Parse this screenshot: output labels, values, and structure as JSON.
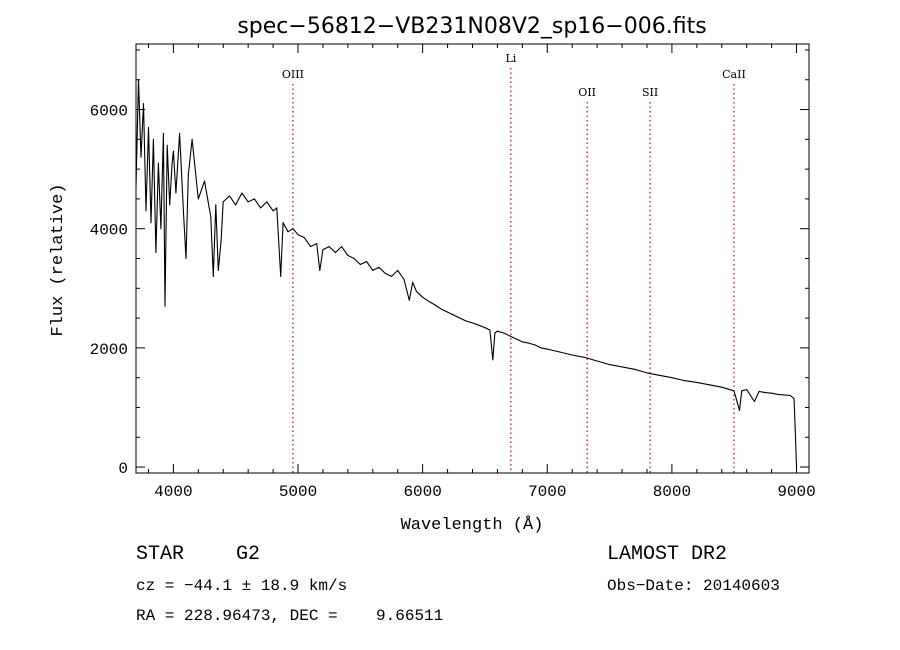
{
  "chart_data": {
    "type": "line",
    "title": "spec−56812−VB231N08V2_sp16−006.fits",
    "xlabel": "Wavelength (Å)",
    "ylabel": "Flux (relative)",
    "xlim": [
      3700,
      9100
    ],
    "ylim": [
      -100,
      7100
    ],
    "x_ticks": [
      4000,
      5000,
      6000,
      7000,
      8000,
      9000
    ],
    "y_ticks": [
      0,
      2000,
      4000,
      6000
    ],
    "x_tick_labels": [
      "4000",
      "5000",
      "6000",
      "7000",
      "8000",
      "9000"
    ],
    "y_tick_labels": [
      "0",
      "2000",
      "4000",
      "6000"
    ],
    "line_color": "#000000",
    "marker_color": "#cc0000",
    "series": [
      {
        "x": [
          3700,
          3720,
          3740,
          3760,
          3780,
          3800,
          3820,
          3840,
          3860,
          3880,
          3900,
          3920,
          3933,
          3950,
          3970,
          3990,
          4000,
          4020,
          4050,
          4080,
          4101,
          4120,
          4150,
          4200,
          4250,
          4300,
          4320,
          4340,
          4360,
          4383,
          4400,
          4450,
          4500,
          4550,
          4600,
          4650,
          4700,
          4750,
          4800,
          4830,
          4861,
          4880,
          4920,
          4960,
          5000,
          5050,
          5100,
          5150,
          5175,
          5200,
          5250,
          5300,
          5350,
          5400,
          5450,
          5500,
          5550,
          5600,
          5650,
          5700,
          5750,
          5800,
          5850,
          5893,
          5920,
          5950,
          6000,
          6050,
          6100,
          6150,
          6200,
          6250,
          6300,
          6350,
          6400,
          6450,
          6500,
          6540,
          6563,
          6580,
          6600,
          6650,
          6700,
          6750,
          6800,
          6850,
          6900,
          6950,
          7000,
          7100,
          7200,
          7300,
          7400,
          7500,
          7600,
          7700,
          7800,
          7900,
          8000,
          8100,
          8200,
          8300,
          8400,
          8498,
          8542,
          8560,
          8600,
          8662,
          8700,
          8750,
          8800,
          8850,
          8900,
          8950,
          8980,
          8990,
          9000
        ],
        "y": [
          4700,
          6500,
          5200,
          6100,
          4300,
          5700,
          4100,
          5500,
          3600,
          5100,
          4000,
          5600,
          2700,
          5400,
          4400,
          5100,
          5300,
          4600,
          5600,
          4300,
          3500,
          4900,
          5500,
          4500,
          4800,
          4200,
          3200,
          4400,
          3300,
          3800,
          4450,
          4550,
          4400,
          4600,
          4450,
          4500,
          4350,
          4450,
          4300,
          4350,
          3200,
          4100,
          3950,
          4000,
          3900,
          3850,
          3700,
          3750,
          3300,
          3650,
          3700,
          3600,
          3700,
          3550,
          3500,
          3400,
          3450,
          3300,
          3350,
          3250,
          3200,
          3300,
          3150,
          2800,
          3100,
          2950,
          2850,
          2780,
          2720,
          2650,
          2600,
          2550,
          2500,
          2450,
          2420,
          2380,
          2340,
          2300,
          1800,
          2250,
          2280,
          2250,
          2200,
          2150,
          2100,
          2080,
          2050,
          2000,
          1980,
          1930,
          1880,
          1840,
          1780,
          1720,
          1680,
          1640,
          1580,
          1540,
          1500,
          1450,
          1420,
          1380,
          1340,
          1280,
          950,
          1280,
          1300,
          1100,
          1270,
          1250,
          1240,
          1220,
          1210,
          1200,
          1150,
          600,
          0
        ]
      }
    ],
    "line_markers": [
      {
        "label": "OIII",
        "x": 4959
      },
      {
        "label": "Li",
        "x": 6708
      },
      {
        "label": "OII",
        "x": 7320
      },
      {
        "label": "SII",
        "x": 7825
      },
      {
        "label": "CaII",
        "x": 8498
      }
    ]
  },
  "footer": {
    "object_class": "STAR",
    "subclass": "G2",
    "survey": "LAMOST DR2",
    "cz": "cz = −44.1 ± 18.9 km/s",
    "obs_date": "Obs−Date: 20140603",
    "coords": "RA = 228.96473, DEC =    9.66511"
  }
}
